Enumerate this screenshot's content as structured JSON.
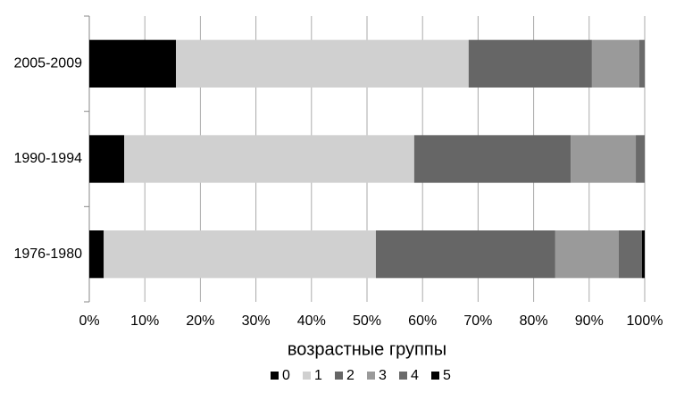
{
  "chart_data": {
    "type": "stacked-barh",
    "x_label": "возрастные группы",
    "categories": [
      "1976-1980",
      "1990-1994",
      "2005-2009"
    ],
    "series": [
      {
        "name": "0",
        "color": "#000000",
        "values": [
          2.6,
          6.3,
          15.6
        ]
      },
      {
        "name": "1",
        "color": "#d0d0d0",
        "values": [
          49.0,
          52.2,
          52.7
        ]
      },
      {
        "name": "2",
        "color": "#666666",
        "values": [
          32.3,
          28.2,
          22.2
        ]
      },
      {
        "name": "3",
        "color": "#9a9a9a",
        "values": [
          11.4,
          11.7,
          8.5
        ]
      },
      {
        "name": "4",
        "color": "#6a6a6a",
        "values": [
          4.2,
          1.6,
          1.0
        ]
      },
      {
        "name": "5",
        "color": "#000000",
        "values": [
          0.5,
          0,
          0
        ]
      }
    ],
    "xlim": [
      0,
      100
    ],
    "xticks": [
      {
        "value": 0,
        "label": "0%"
      },
      {
        "value": 10,
        "label": "10%"
      },
      {
        "value": 20,
        "label": "20%"
      },
      {
        "value": 30,
        "label": "30%"
      },
      {
        "value": 40,
        "label": "40%"
      },
      {
        "value": 50,
        "label": "50%"
      },
      {
        "value": 60,
        "label": "60%"
      },
      {
        "value": 70,
        "label": "70%"
      },
      {
        "value": 80,
        "label": "80%"
      },
      {
        "value": 90,
        "label": "90%"
      },
      {
        "value": 100,
        "label": "100%"
      }
    ],
    "grid": true
  }
}
